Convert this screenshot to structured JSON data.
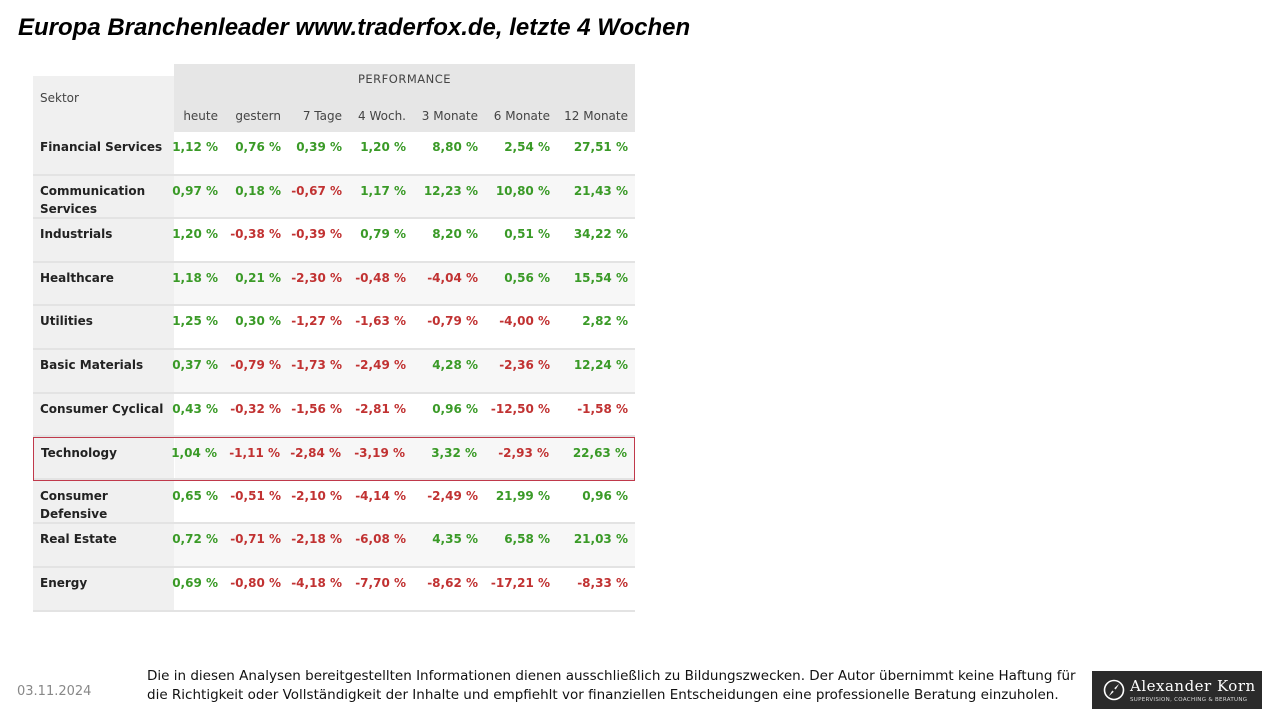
{
  "title": "Europa Branchenleader www.traderfox.de, letzte 4 Wochen",
  "table": {
    "sektor_header": "Sektor",
    "group_header": "PERFORMANCE",
    "columns": [
      "heute",
      "gestern",
      "7 Tage",
      "4 Woch.",
      "3 Monate",
      "6 Monate",
      "12 Monate"
    ],
    "rows": [
      {
        "sector": "Financial Services",
        "values": [
          "1,12 %",
          "0,76 %",
          "0,39 %",
          "1,20 %",
          "8,80 %",
          "2,54 %",
          "27,51 %"
        ]
      },
      {
        "sector": "Communication Services",
        "values": [
          "0,97 %",
          "0,18 %",
          "-0,67 %",
          "1,17 %",
          "12,23 %",
          "10,80 %",
          "21,43 %"
        ]
      },
      {
        "sector": "Industrials",
        "values": [
          "1,20 %",
          "-0,38 %",
          "-0,39 %",
          "0,79 %",
          "8,20 %",
          "0,51 %",
          "34,22 %"
        ]
      },
      {
        "sector": "Healthcare",
        "values": [
          "1,18 %",
          "0,21 %",
          "-2,30 %",
          "-0,48 %",
          "-4,04 %",
          "0,56 %",
          "15,54 %"
        ]
      },
      {
        "sector": "Utilities",
        "values": [
          "1,25 %",
          "0,30 %",
          "-1,27 %",
          "-1,63 %",
          "-0,79 %",
          "-4,00 %",
          "2,82 %"
        ]
      },
      {
        "sector": "Basic Materials",
        "values": [
          "0,37 %",
          "-0,79 %",
          "-1,73 %",
          "-2,49 %",
          "4,28 %",
          "-2,36 %",
          "12,24 %"
        ]
      },
      {
        "sector": "Consumer Cyclical",
        "values": [
          "0,43 %",
          "-0,32 %",
          "-1,56 %",
          "-2,81 %",
          "0,96 %",
          "-12,50 %",
          "-1,58 %"
        ]
      },
      {
        "sector": "Technology",
        "values": [
          "1,04 %",
          "-1,11 %",
          "-2,84 %",
          "-3,19 %",
          "3,32 %",
          "-2,93 %",
          "22,63 %"
        ]
      },
      {
        "sector": "Consumer Defensive",
        "values": [
          "0,65 %",
          "-0,51 %",
          "-2,10 %",
          "-4,14 %",
          "-2,49 %",
          "21,99 %",
          "0,96 %"
        ]
      },
      {
        "sector": "Real Estate",
        "values": [
          "0,72 %",
          "-0,71 %",
          "-2,18 %",
          "-6,08 %",
          "4,35 %",
          "6,58 %",
          "21,03 %"
        ]
      },
      {
        "sector": "Energy",
        "values": [
          "0,69 %",
          "-0,80 %",
          "-4,18 %",
          "-7,70 %",
          "-8,62 %",
          "-17,21 %",
          "-8,33 %"
        ]
      }
    ],
    "highlighted_sector": "Technology",
    "colors": {
      "positive": "#3a9a27",
      "negative": "#c13232",
      "highlight_border": "#c0394b"
    }
  },
  "footer": {
    "date": "03.11.2024",
    "disclaimer": "Die in diesen Analysen bereitgestellten Informationen dienen ausschließlich zu Bildungszwecken. Der Autor übernimmt keine Haftung für die Richtigkeit oder Vollständigkeit der Inhalte und empfiehlt vor finanziellen Entscheidungen eine professionelle Beratung einzuholen.",
    "logo_name": "Alexander Korn",
    "logo_tagline": "SUPERVISION, COACHING & BERATUNG",
    "logo_icon": "compass-icon"
  }
}
